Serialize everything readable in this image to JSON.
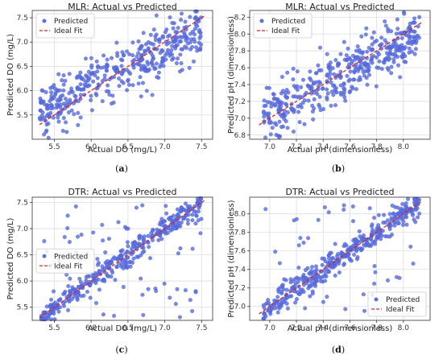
{
  "chart_data": [
    {
      "type": "scatter",
      "title": "MLR: Actual vs Predicted",
      "xlabel": "Actual DO (mg/L)",
      "ylabel": "Predicted DO (mg/L)",
      "caption": "(a)",
      "xlim": [
        5.2,
        7.65
      ],
      "ylim": [
        5.0,
        7.65
      ],
      "xticks": [
        "5.5",
        "6.0",
        "6.5",
        "7.0",
        "7.5"
      ],
      "xtick_values": [
        5.5,
        6.0,
        6.5,
        7.0,
        7.5
      ],
      "yticks": [
        "5.5",
        "6.0",
        "6.5",
        "7.0",
        "7.5"
      ],
      "ytick_values": [
        5.5,
        6.0,
        6.5,
        7.0,
        7.5
      ],
      "grid": true,
      "legend": "top-left",
      "legend_entries": [
        "Predicted",
        "Ideal Fit"
      ],
      "ideal_fit": [
        [
          5.3,
          5.3
        ],
        [
          7.55,
          7.55
        ]
      ],
      "n_points": 420,
      "x_range": [
        5.3,
        7.5
      ],
      "trend": {
        "slope": 0.75,
        "intercept": 1.6
      },
      "spread": 0.28
    },
    {
      "type": "scatter",
      "title": "MLR: Actual vs Predicted",
      "xlabel": "Actual pH (dimensionless)",
      "ylabel": "Predicted pH (dimensionless)",
      "caption": "(b)",
      "xlim": [
        6.85,
        8.2
      ],
      "ylim": [
        6.75,
        8.28
      ],
      "xticks": [
        "7.0",
        "7.2",
        "7.4",
        "7.6",
        "7.8",
        "8.0"
      ],
      "xtick_values": [
        7.0,
        7.2,
        7.4,
        7.6,
        7.8,
        8.0
      ],
      "yticks": [
        "6.8",
        "7.0",
        "7.2",
        "7.4",
        "7.6",
        "7.8",
        "8.0",
        "8.2"
      ],
      "ytick_values": [
        6.8,
        7.0,
        7.2,
        7.4,
        7.6,
        7.8,
        8.0,
        8.2
      ],
      "grid": true,
      "legend": "top-left",
      "legend_entries": [
        "Predicted",
        "Ideal Fit"
      ],
      "ideal_fit": [
        [
          6.92,
          6.92
        ],
        [
          8.14,
          8.14
        ]
      ],
      "n_points": 420,
      "x_range": [
        6.95,
        8.12
      ],
      "trend": {
        "slope": 0.85,
        "intercept": 1.12
      },
      "spread": 0.16
    },
    {
      "type": "scatter",
      "title": "DTR: Actual vs Predicted",
      "xlabel": "Actual DO (mg/L)",
      "ylabel": "Predicted DO (mg/L)",
      "caption": "(c)",
      "xlim": [
        5.2,
        7.65
      ],
      "ylim": [
        5.25,
        7.6
      ],
      "xticks": [
        "5.5",
        "6.0",
        "6.5",
        "7.0",
        "7.5"
      ],
      "xtick_values": [
        5.5,
        6.0,
        6.5,
        7.0,
        7.5
      ],
      "yticks": [
        "5.5",
        "6.0",
        "6.5",
        "7.0",
        "7.5"
      ],
      "ytick_values": [
        5.5,
        6.0,
        6.5,
        7.0,
        7.5
      ],
      "grid": true,
      "legend": "center-left",
      "legend_entries": [
        "Predicted",
        "Ideal Fit"
      ],
      "ideal_fit": [
        [
          5.3,
          5.3
        ],
        [
          7.55,
          7.55
        ]
      ],
      "n_points": 420,
      "x_range": [
        5.3,
        7.5
      ],
      "trend": {
        "slope": 1.0,
        "intercept": 0.0
      },
      "spread": 0.12,
      "outlier_fraction": 0.14
    },
    {
      "type": "scatter",
      "title": "DTR: Actual vs Predicted",
      "xlabel": "Actual pH (dimensionless)",
      "ylabel": "Predicted pH (dimensionless)",
      "caption": "(d)",
      "xlim": [
        6.85,
        8.2
      ],
      "ylim": [
        6.85,
        8.18
      ],
      "xticks": [
        "7.0",
        "7.2",
        "7.4",
        "7.6",
        "7.8",
        "8.0"
      ],
      "xtick_values": [
        7.0,
        7.2,
        7.4,
        7.6,
        7.8,
        8.0
      ],
      "yticks": [
        "7.0",
        "7.2",
        "7.4",
        "7.6",
        "7.8",
        "8.0"
      ],
      "ytick_values": [
        7.0,
        7.2,
        7.4,
        7.6,
        7.8,
        8.0
      ],
      "grid": true,
      "legend": "bottom-right",
      "legend_entries": [
        "Predicted",
        "Ideal Fit"
      ],
      "ideal_fit": [
        [
          6.92,
          6.92
        ],
        [
          8.14,
          8.14
        ]
      ],
      "n_points": 420,
      "x_range": [
        6.95,
        8.12
      ],
      "trend": {
        "slope": 1.0,
        "intercept": 0.0
      },
      "spread": 0.07,
      "outlier_fraction": 0.14
    }
  ],
  "colors": {
    "points": "#5b6fe0",
    "points_edge": "#3c4fc8",
    "ideal_fit": "#d62728",
    "grid": "#dddddd",
    "axes": "#333333"
  }
}
